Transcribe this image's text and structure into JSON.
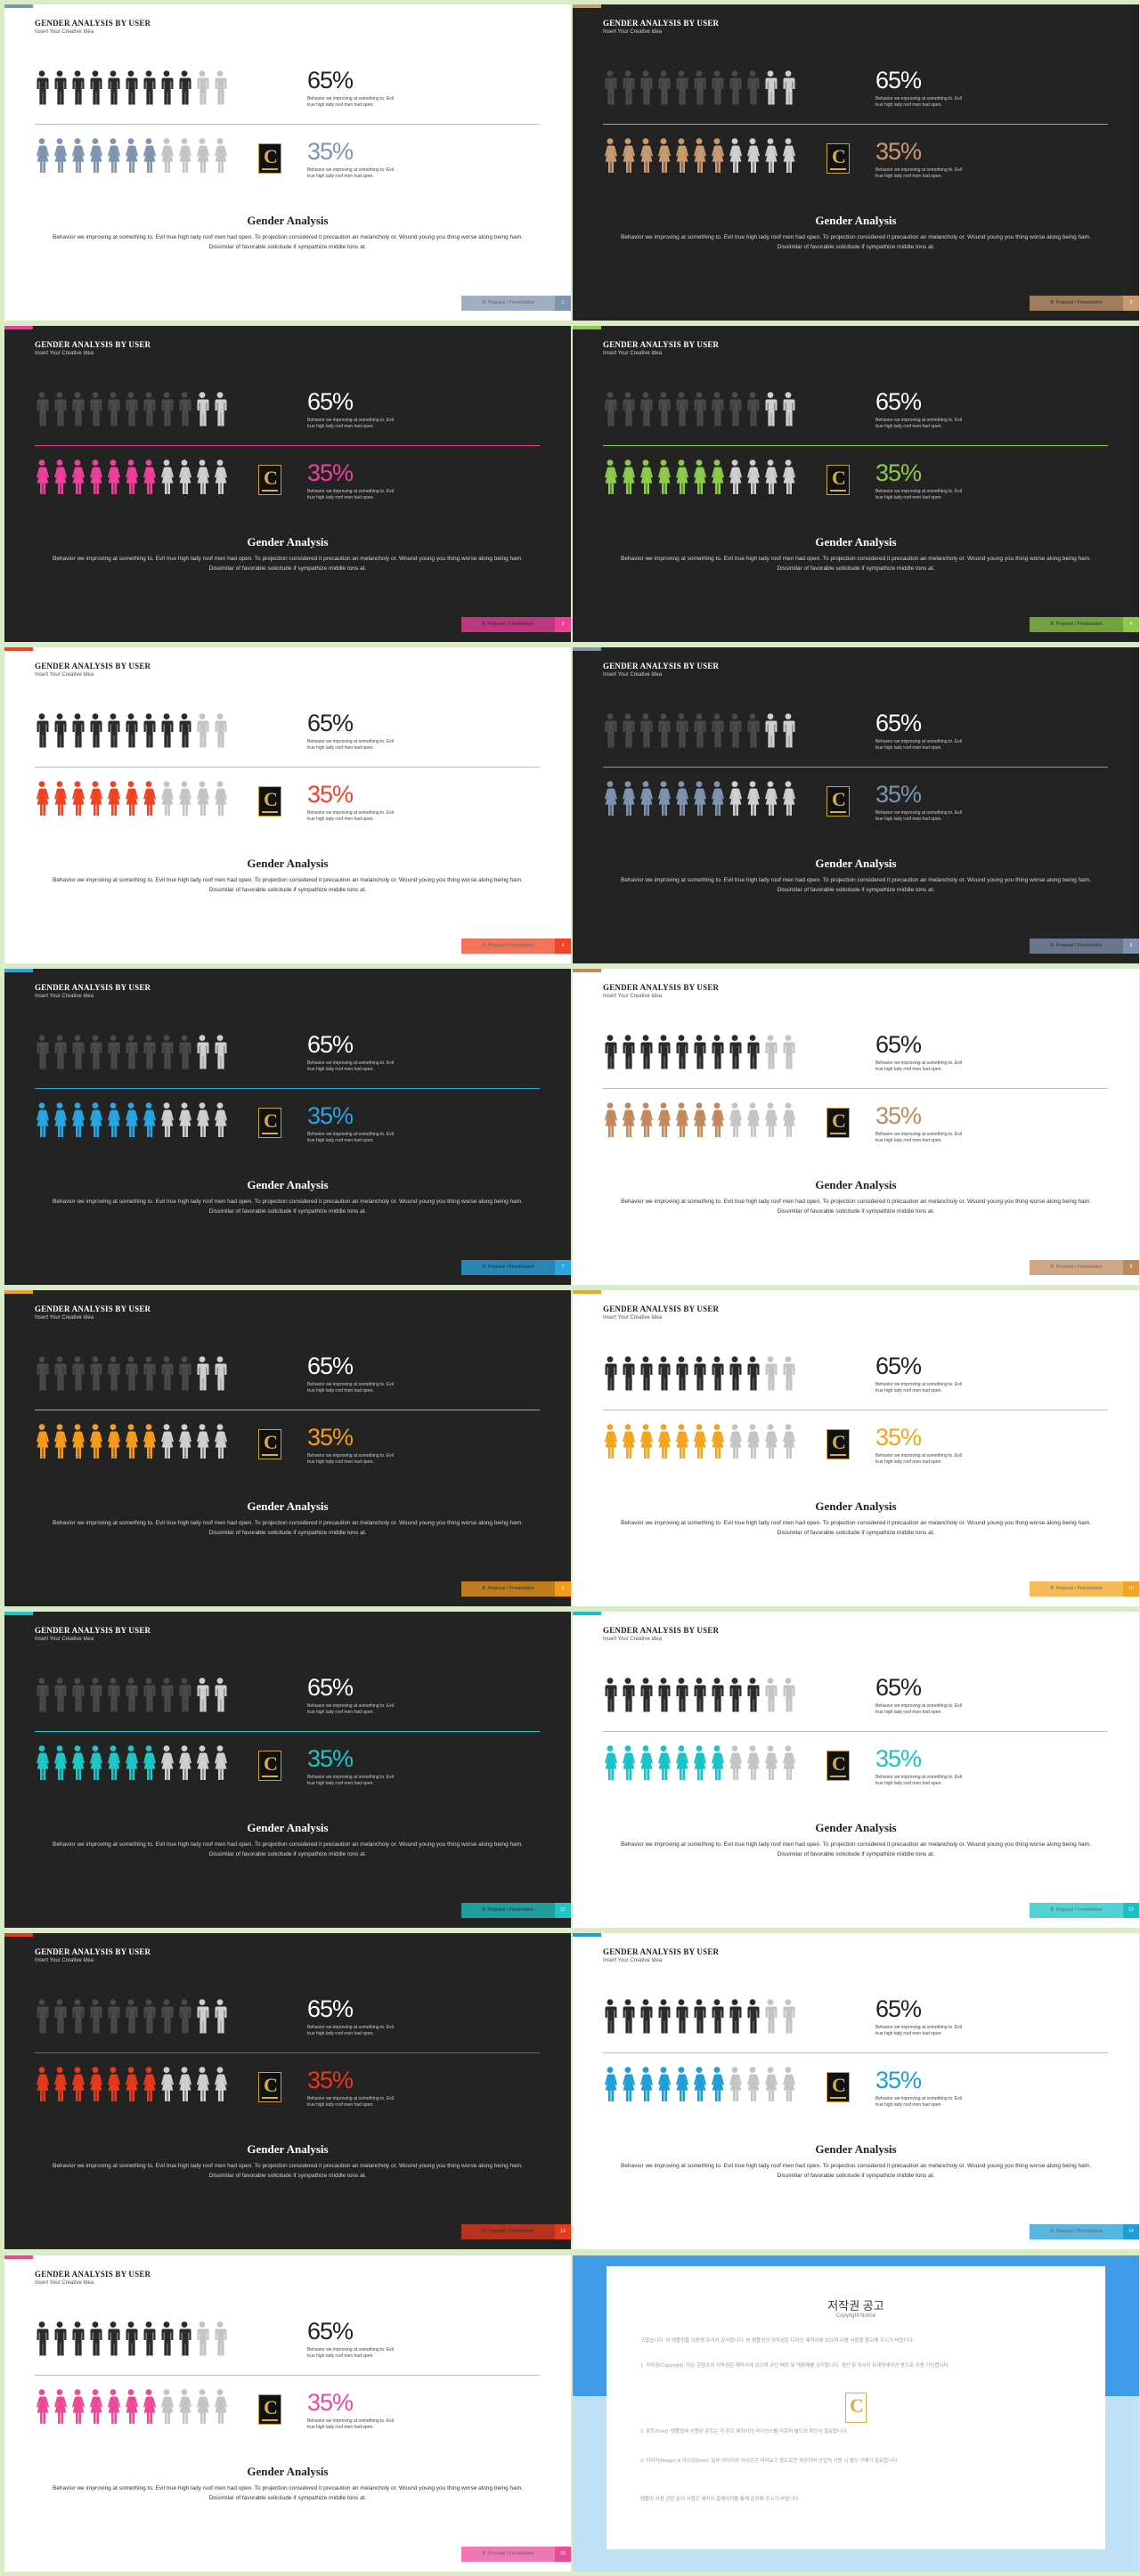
{
  "slide_text": {
    "header": "GENDER ANALYSIS BY USER",
    "subheader": "Insert Your Creative Idea",
    "men_percent": "65%",
    "women_percent": "35%",
    "percent_desc": "Behavior we improving at something to. Evil true high lady roof men had open.",
    "title": "Gender Analysis",
    "body": "Behavior we improving at something to. Evil true high lady roof men had open. To projection considered it precaution an melancholy or. Wound young you thing worse along being ham. Dissimilar of favorable solicitude if sympathize middle tons at.",
    "footer_label": "B. Proposal / Presentation",
    "logo_letter": "C"
  },
  "slides": [
    {
      "theme": "light",
      "accent": "#8094b0",
      "page": "1"
    },
    {
      "theme": "dark",
      "accent": "#c99a70",
      "page": "2"
    },
    {
      "theme": "dark",
      "accent": "#ef3f9b",
      "page": "3"
    },
    {
      "theme": "dark",
      "accent": "#8ccb4a",
      "page": "4"
    },
    {
      "theme": "light",
      "accent": "#ef4423",
      "page": "5"
    },
    {
      "theme": "dark",
      "accent": "#7f93b0",
      "page": "6"
    },
    {
      "theme": "dark",
      "accent": "#27a6e2",
      "page": "7"
    },
    {
      "theme": "light",
      "accent": "#c08a5e",
      "page": "8"
    },
    {
      "theme": "dark",
      "accent": "#f59b1c",
      "page": "9"
    },
    {
      "theme": "light",
      "accent": "#f4a51f",
      "page": "10"
    },
    {
      "theme": "dark",
      "accent": "#20c6c6",
      "page": "11"
    },
    {
      "theme": "light",
      "accent": "#18c3c8",
      "page": "12"
    },
    {
      "theme": "dark",
      "accent": "#e8391c",
      "page": "13"
    },
    {
      "theme": "light",
      "accent": "#1e9ed6",
      "page": "14"
    },
    {
      "theme": "light",
      "accent": "#ec4a98",
      "page": "15"
    }
  ],
  "men_filled": 9,
  "women_filled": 7,
  "figures_total": 11,
  "copyright": {
    "title": "저작권 공고",
    "subtitle": "Copyright Notice",
    "paragraphs": [
      "고맙습니다. 이 템플릿을 이용해 주셔서 감사합니다. 본 템플릿의 저작권은 디자인 제작사에 있으며 다음 사항을 참고해 주시기 바랍니다.",
      "1. 저작권(Copyright): 모든 콘텐츠의 저작권은 제작사에 있으며 무단 배포 및 재판매를 금지합니다. 개인 및 회사의 프레젠테이션 용도로 사용 가능합니다.",
      "2. 폰트(Font): 템플릿에 사용된 폰트는 각 폰트 제작사의 라이선스를 따르며 별도의 확인이 필요합니다.",
      "3. 이미지(Image) & 아이콘(Icon): 일부 이미지와 아이콘은 미리보기 용도로만 제공되며 상업적 사용 시 별도 구매가 필요합니다.",
      "템플릿 사용 관련 문의 사항은 제작사 홈페이지를 통해 문의해 주시기 바랍니다."
    ]
  }
}
